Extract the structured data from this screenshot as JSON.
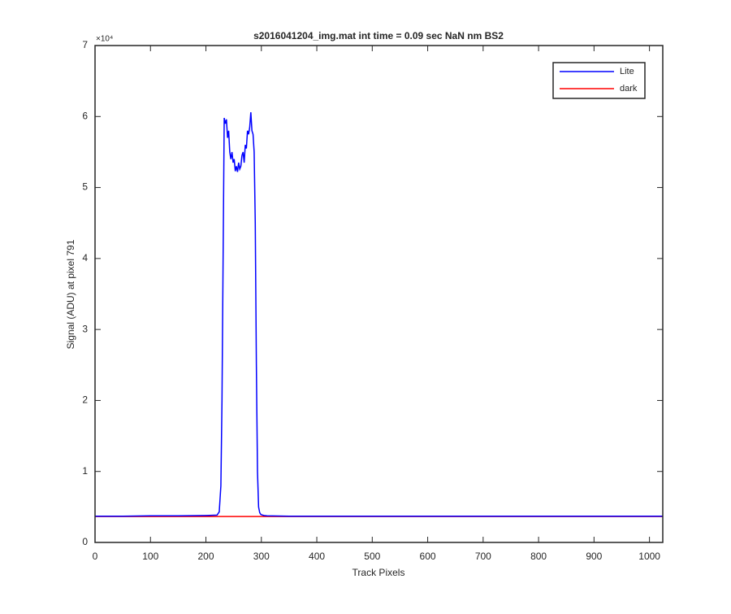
{
  "chart_data": {
    "type": "line",
    "title": "s2016041204_img.mat int time = 0.09 sec  NaN nm BS2",
    "x_label": "Track Pixels",
    "y_label": "Signal (ADU) at pixel 791",
    "y_scale_label": "×10⁴",
    "xlim": [
      0,
      1024
    ],
    "xticks": [
      0,
      100,
      200,
      300,
      400,
      500,
      600,
      700,
      800,
      900,
      1000
    ],
    "ylim": [
      0,
      70000
    ],
    "yticks": [
      {
        "value": 0,
        "label": "0"
      },
      {
        "value": 10000,
        "label": "1"
      },
      {
        "value": 20000,
        "label": "2"
      },
      {
        "value": 30000,
        "label": "3"
      },
      {
        "value": 40000,
        "label": "4"
      },
      {
        "value": 50000,
        "label": "5"
      },
      {
        "value": 60000,
        "label": "6"
      },
      {
        "value": 70000,
        "label": "7"
      }
    ],
    "legend": "upper right",
    "series": [
      {
        "name": "Lite",
        "color": "#0000ff",
        "x": [
          0,
          50,
          100,
          150,
          200,
          220,
          224,
          227,
          229,
          231,
          233,
          235,
          237,
          239,
          241,
          243,
          245,
          247,
          249,
          251,
          253,
          255,
          257,
          259,
          261,
          263,
          265,
          267,
          269,
          271,
          273,
          275,
          277,
          279,
          281,
          283,
          285,
          287,
          289,
          291,
          293,
          295,
          297,
          299,
          302,
          305,
          310,
          350,
          400,
          500,
          600,
          700,
          800,
          900,
          1000,
          1024
        ],
        "values": [
          3700,
          3700,
          3750,
          3750,
          3800,
          3850,
          4300,
          8000,
          20000,
          40000,
          59800,
          59000,
          59600,
          57000,
          58000,
          55000,
          54000,
          55000,
          53500,
          54000,
          52300,
          53000,
          52200,
          53500,
          52600,
          53000,
          54500,
          55000,
          53500,
          56000,
          55500,
          58000,
          57500,
          58500,
          60600,
          58000,
          57500,
          55000,
          45000,
          25000,
          10000,
          5000,
          4200,
          3950,
          3850,
          3800,
          3750,
          3700,
          3700,
          3700,
          3700,
          3700,
          3700,
          3700,
          3700,
          3700
        ]
      },
      {
        "name": "dark",
        "color": "#ff0000",
        "x": [
          0,
          1024
        ],
        "values": [
          3650,
          3650
        ]
      }
    ]
  }
}
